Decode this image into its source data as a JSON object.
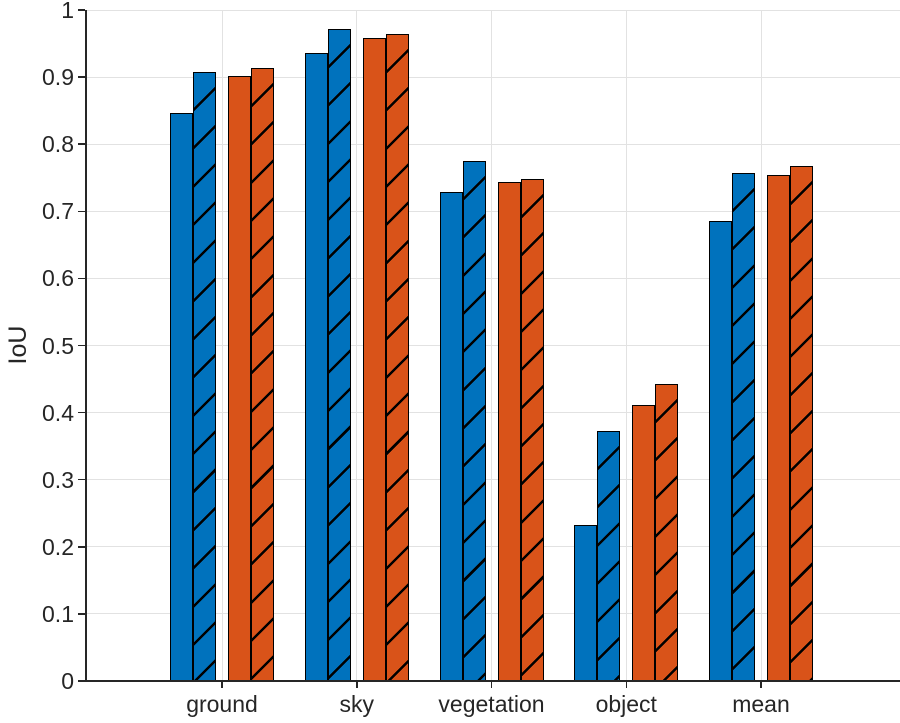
{
  "chart_data": {
    "type": "bar",
    "title": "",
    "xlabel": "",
    "ylabel": "IoU",
    "categories": [
      "ground",
      "sky",
      "vegetation",
      "object",
      "mean"
    ],
    "series": [
      {
        "name": "blue-solid",
        "color": "#0072BD",
        "hatched": false,
        "values": [
          0.847,
          0.936,
          0.729,
          0.233,
          0.686
        ]
      },
      {
        "name": "blue-hatched",
        "color": "#0072BD",
        "hatched": true,
        "values": [
          0.908,
          0.972,
          0.775,
          0.373,
          0.757
        ]
      },
      {
        "name": "orange-solid",
        "color": "#D95319",
        "hatched": false,
        "values": [
          0.901,
          0.959,
          0.744,
          0.411,
          0.754
        ]
      },
      {
        "name": "orange-hatched",
        "color": "#D95319",
        "hatched": true,
        "values": [
          0.914,
          0.964,
          0.748,
          0.443,
          0.767
        ]
      }
    ],
    "ylim": [
      0,
      1
    ],
    "yticks": [
      0,
      0.1,
      0.2,
      0.3,
      0.4,
      0.5,
      0.6,
      0.7,
      0.8,
      0.9,
      1
    ],
    "grid": true,
    "legend": "none",
    "bar_edge_color": "#000000",
    "hatch_style": "forward-diagonal"
  },
  "colors": {
    "background": "#ffffff",
    "axis": "#262626",
    "grid": "#e2e2e2",
    "blue": "#0072BD",
    "orange": "#D95319"
  }
}
